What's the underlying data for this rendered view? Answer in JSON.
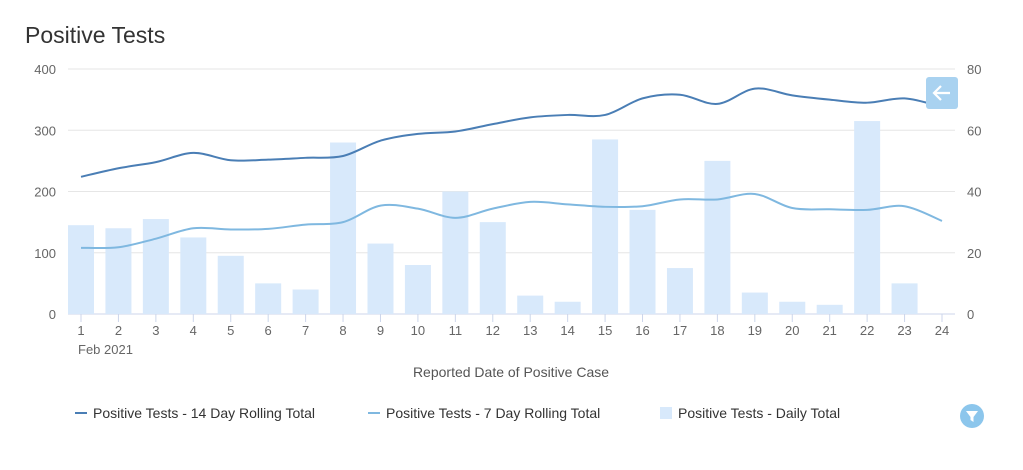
{
  "chart_data": {
    "type": "bar+line",
    "title": "Positive Tests",
    "xlabel": "Reported Date of Positive Case",
    "x_sublabel": "Feb 2021",
    "categories": [
      "1",
      "2",
      "3",
      "4",
      "5",
      "6",
      "7",
      "8",
      "9",
      "10",
      "11",
      "12",
      "13",
      "14",
      "15",
      "16",
      "17",
      "18",
      "19",
      "20",
      "21",
      "22",
      "23",
      "24"
    ],
    "left_axis": {
      "ylim": [
        0,
        400
      ],
      "ticks": [
        "0",
        "100",
        "200",
        "300",
        "400"
      ]
    },
    "right_axis": {
      "ylim": [
        0,
        80
      ],
      "ticks": [
        "0",
        "20",
        "40",
        "60",
        "80"
      ]
    },
    "grid": true,
    "legend_position": "bottom",
    "series": [
      {
        "name": "Positive Tests - 14 Day Rolling Total",
        "type": "line",
        "axis": "left",
        "color": "#4a7eb5",
        "values": [
          224,
          238,
          248,
          263,
          251,
          252,
          255,
          258,
          283,
          294,
          298,
          310,
          321,
          325,
          325,
          352,
          358,
          343,
          368,
          357,
          350,
          345,
          352,
          338
        ]
      },
      {
        "name": "Positive Tests - 7 Day Rolling Total",
        "type": "line",
        "axis": "left",
        "color": "#7fb8e0",
        "values": [
          108,
          109,
          123,
          140,
          138,
          139,
          146,
          150,
          177,
          172,
          157,
          172,
          183,
          179,
          175,
          176,
          187,
          187,
          196,
          173,
          171,
          170,
          176,
          152
        ]
      },
      {
        "name": "Positive Tests - Daily Total",
        "type": "bar",
        "axis": "right",
        "color": "#d8e9fb",
        "values": [
          29,
          28,
          31,
          25,
          19,
          10,
          8,
          56,
          23,
          16,
          40,
          30,
          6,
          4,
          57,
          34,
          15,
          50,
          7,
          4,
          3,
          63,
          10,
          0
        ]
      }
    ]
  },
  "colors": {
    "accent": "#a9d2f0",
    "filter": "#8cc6ec"
  }
}
